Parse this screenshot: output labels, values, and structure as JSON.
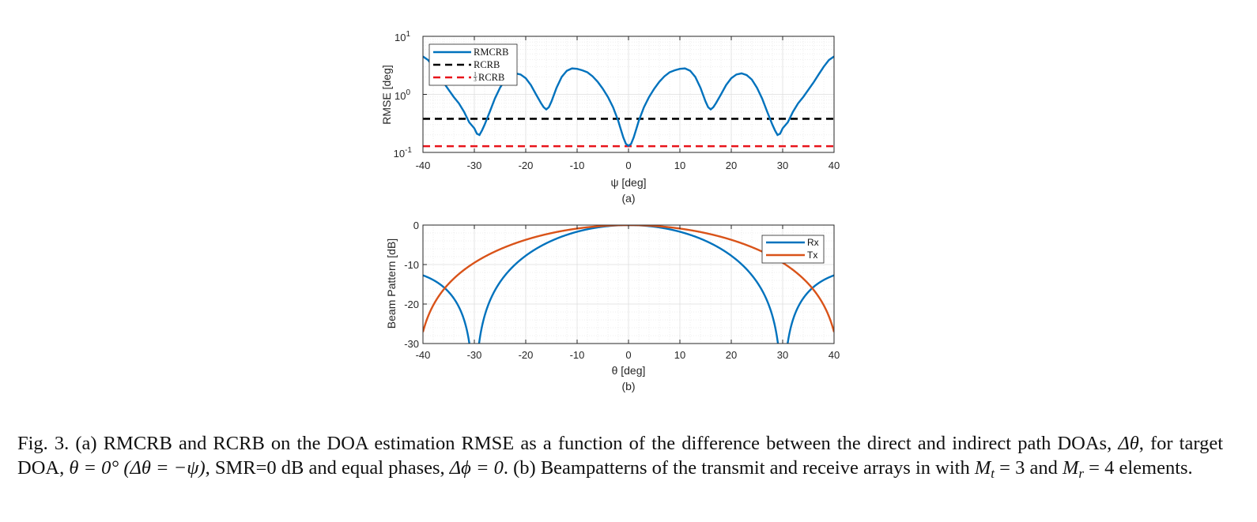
{
  "colors": {
    "rmcrb": "#0072BD",
    "rcrb": "#000000",
    "third_rcrb": "#E8141B",
    "rx": "#0072BD",
    "tx": "#D95319",
    "grid": "#dedede"
  },
  "chart_data": [
    {
      "type": "line",
      "panel_label": "(a)",
      "xlabel": "ψ [deg]",
      "ylabel": "RMSE [deg]",
      "yscale": "log",
      "xlim": [
        -40,
        40
      ],
      "ylim": [
        0.1,
        10
      ],
      "xticks": [
        "-40",
        "-30",
        "-20",
        "-10",
        "0",
        "10",
        "20",
        "30",
        "40"
      ],
      "yticks": [
        {
          "base": "10",
          "exp": "1"
        },
        {
          "base": "10",
          "exp": "0"
        },
        {
          "base": "10",
          "exp": "-1"
        }
      ],
      "legend_position": "top-left",
      "series": [
        {
          "name": "RMCRB",
          "style": "solid",
          "x": [
            -40,
            -39,
            -38,
            -37,
            -36,
            -35,
            -34,
            -33,
            -32,
            -31,
            -30,
            -29.5,
            -29,
            -28.5,
            -28,
            -27,
            -26,
            -25,
            -24,
            -23,
            -22,
            -21,
            -20,
            -19,
            -18,
            -17,
            -16.5,
            -16,
            -15.5,
            -15,
            -14,
            -13,
            -12,
            -11,
            -10,
            -9,
            -8,
            -7,
            -6,
            -5,
            -4,
            -3,
            -2,
            -1.5,
            -1,
            -0.5,
            0,
            0.5,
            1,
            1.5,
            2,
            3,
            4,
            5,
            6,
            7,
            8,
            9,
            10,
            11,
            12,
            13,
            14,
            15,
            15.5,
            16,
            16.5,
            17,
            18,
            19,
            20,
            21,
            22,
            23,
            24,
            25,
            26,
            27,
            28,
            28.5,
            29,
            29.5,
            30,
            31,
            32,
            33,
            34,
            35,
            36,
            37,
            38,
            39,
            40
          ],
          "values": [
            4.5,
            3.9,
            3.0,
            2.2,
            1.6,
            1.2,
            0.9,
            0.7,
            0.5,
            0.33,
            0.26,
            0.21,
            0.2,
            0.24,
            0.3,
            0.5,
            0.85,
            1.3,
            1.8,
            2.15,
            2.3,
            2.2,
            1.9,
            1.45,
            1.0,
            0.7,
            0.6,
            0.55,
            0.6,
            0.75,
            1.3,
            2.0,
            2.55,
            2.8,
            2.75,
            2.6,
            2.4,
            2.05,
            1.65,
            1.25,
            0.9,
            0.6,
            0.35,
            0.25,
            0.18,
            0.14,
            0.13,
            0.14,
            0.18,
            0.25,
            0.35,
            0.6,
            0.9,
            1.25,
            1.65,
            2.05,
            2.4,
            2.6,
            2.75,
            2.8,
            2.55,
            2.0,
            1.3,
            0.75,
            0.6,
            0.55,
            0.6,
            0.7,
            1.0,
            1.45,
            1.9,
            2.2,
            2.3,
            2.15,
            1.8,
            1.3,
            0.85,
            0.5,
            0.3,
            0.24,
            0.2,
            0.21,
            0.26,
            0.33,
            0.5,
            0.7,
            0.9,
            1.2,
            1.6,
            2.2,
            3.0,
            3.9,
            4.5
          ]
        },
        {
          "name": "RCRB",
          "style": "dashed",
          "x": [
            -40,
            40
          ],
          "values": [
            0.38,
            0.38
          ]
        },
        {
          "name": "1/3 RCRB",
          "style": "dashed",
          "x": [
            -40,
            40
          ],
          "values": [
            0.128,
            0.128
          ]
        }
      ],
      "legend": [
        "RMCRB",
        "RCRB",
        "RCRB"
      ],
      "legend_frac": {
        "num": "1",
        "den": "3"
      }
    },
    {
      "type": "line",
      "panel_label": "(b)",
      "xlabel": "θ [deg]",
      "ylabel": "Beam Pattern [dB]",
      "xlim": [
        -40,
        40
      ],
      "ylim": [
        -30,
        0
      ],
      "xticks": [
        "-40",
        "-30",
        "-20",
        "-10",
        "0",
        "10",
        "20",
        "30",
        "40"
      ],
      "yticks": [
        "0",
        "-10",
        "-20",
        "-30"
      ],
      "legend_position": "top-right",
      "series": [
        {
          "name": "Rx",
          "model": "uniform_linear_array_gain",
          "elements": 4
        },
        {
          "name": "Tx",
          "model": "uniform_linear_array_gain",
          "elements": 3
        }
      ],
      "legend": [
        "Rx",
        "Tx"
      ]
    }
  ],
  "caption": {
    "p1": "Fig. 3.  (a) RMCRB and RCRB on the DOA estimation RMSE as a function of the difference between the direct and indirect path DOAs,",
    "p2a": "Δθ",
    "p2b": ", for target DOA,",
    "p2c": "θ = 0° (Δθ = −ψ)",
    "p2d": ", SMR=0 dB and equal phases,",
    "p2e": "Δϕ = 0",
    "p2f": ". (b) Beampatterns of the transmit and receive arrays in",
    "p3a": "with",
    "m": "M",
    "t": "t",
    "r": "r",
    "eq3": "= 3",
    "and": "and",
    "eq4": "= 4",
    "p3e": "elements."
  }
}
